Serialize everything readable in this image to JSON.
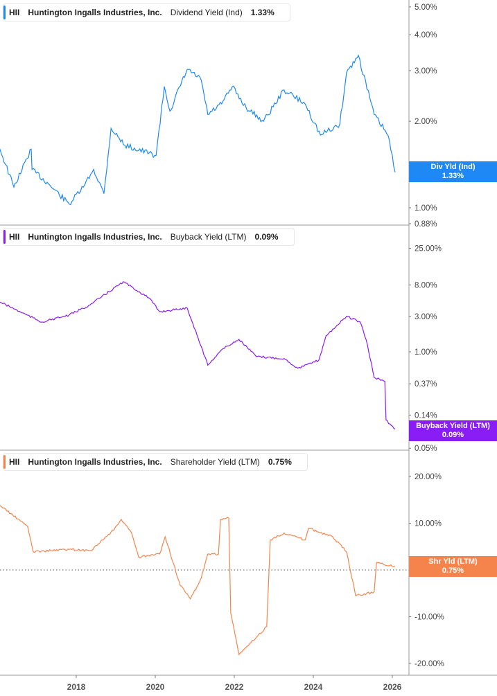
{
  "chart_data": [
    {
      "type": "line",
      "scale": "log",
      "legend": {
        "ticker": "HII",
        "company": "Huntington Ingalls Industries, Inc.",
        "metric": "Dividend Yield (Ind)",
        "value": "1.33%"
      },
      "tag": {
        "label": "Div Yld (Ind)",
        "value": "1.33%"
      },
      "color": "#1e88f5",
      "yticks": [
        "5.00%",
        "4.00%",
        "3.00%",
        "2.00%",
        "1.00%",
        "0.88%"
      ],
      "ytick_values": [
        5,
        4,
        3,
        2,
        1,
        0.88
      ],
      "ylim": [
        0.88,
        5.3
      ],
      "series": {
        "t": [
          2016.07,
          2016.42,
          2016.86,
          2016.88,
          2017.3,
          2017.82,
          2018.18,
          2018.44,
          2018.7,
          2018.88,
          2019.23,
          2020.02,
          2020.23,
          2020.37,
          2020.81,
          2021.16,
          2021.33,
          2021.68,
          2021.95,
          2022.3,
          2022.74,
          2023.26,
          2023.79,
          2024.18,
          2024.67,
          2024.84,
          2025.14,
          2025.54,
          2025.89,
          2026.07
        ],
        "y": [
          1.6,
          1.18,
          1.6,
          1.36,
          1.21,
          1.03,
          1.18,
          1.36,
          1.12,
          1.89,
          1.65,
          1.52,
          2.64,
          2.17,
          3.03,
          2.79,
          2.11,
          2.3,
          2.64,
          2.23,
          2.0,
          2.57,
          2.3,
          1.79,
          1.95,
          2.95,
          3.39,
          2.11,
          1.79,
          1.33
        ]
      }
    },
    {
      "type": "line",
      "scale": "log",
      "legend": {
        "ticker": "HII",
        "company": "Huntington Ingalls Industries, Inc.",
        "metric": "Buyback Yield (LTM)",
        "value": "0.09%"
      },
      "tag": {
        "label": "Buyback Yield (LTM)",
        "value": "0.09%"
      },
      "color": "#8a1cf5",
      "yticks": [
        "25.00%",
        "8.00%",
        "3.00%",
        "1.00%",
        "0.37%",
        "0.14%",
        "0.05%"
      ],
      "ytick_values": [
        25,
        8,
        3,
        1,
        0.37,
        0.14,
        0.05
      ],
      "ylim": [
        0.05,
        30
      ],
      "series": {
        "t": [
          2016.07,
          2017.12,
          2017.82,
          2018.35,
          2019.19,
          2019.84,
          2020.11,
          2020.81,
          2021.16,
          2021.33,
          2021.68,
          2022.12,
          2022.56,
          2023.26,
          2023.61,
          2024.14,
          2024.32,
          2024.84,
          2025.19,
          2025.37,
          2025.54,
          2025.81,
          2025.84,
          2026.07
        ],
        "y": [
          4.7,
          2.52,
          3.13,
          4.3,
          8.8,
          5.35,
          3.48,
          3.88,
          1.19,
          0.66,
          1.07,
          1.47,
          0.86,
          0.81,
          0.6,
          0.77,
          1.64,
          3.0,
          2.52,
          1.24,
          0.45,
          0.4,
          0.12,
          0.09
        ]
      }
    },
    {
      "type": "line",
      "scale": "linear",
      "legend": {
        "ticker": "HII",
        "company": "Huntington Ingalls Industries, Inc.",
        "metric": "Shareholder Yield (LTM)",
        "value": "0.75%"
      },
      "tag": {
        "label": "Shr Yld (LTM)",
        "value": "0.75%"
      },
      "color": "#f5844c",
      "yticks": [
        "20.00%",
        "10.00%",
        "0.00%",
        "-10.00%",
        "-20.00%"
      ],
      "ytick_values": [
        20,
        10,
        0,
        -10,
        -20
      ],
      "ylim": [
        -22,
        24
      ],
      "series": {
        "t": [
          2016.07,
          2016.77,
          2016.91,
          2017.82,
          2018.35,
          2018.96,
          2019.14,
          2019.4,
          2019.58,
          2020.11,
          2020.25,
          2020.63,
          2020.89,
          2021.16,
          2021.33,
          2021.6,
          2021.65,
          2021.86,
          2021.91,
          2022.12,
          2022.56,
          2022.82,
          2022.91,
          2023.26,
          2023.79,
          2023.88,
          2024.49,
          2024.84,
          2025.07,
          2025.54,
          2025.6,
          2026.07
        ],
        "y": [
          13.8,
          9.3,
          3.9,
          4.4,
          4.1,
          8.6,
          10.8,
          7.9,
          2.7,
          3.4,
          7.1,
          -3.3,
          -6.2,
          -1.8,
          3.4,
          3.4,
          10.8,
          11.1,
          -9.2,
          -18.1,
          -14.4,
          -12.1,
          6.4,
          7.9,
          6.4,
          8.9,
          7.1,
          3.9,
          -5.5,
          -4.7,
          1.6,
          0.75
        ]
      }
    }
  ],
  "xaxis": {
    "ticks": [
      "2018",
      "2020",
      "2022",
      "2024",
      "2026"
    ],
    "tick_values": [
      2018,
      2020,
      2022,
      2024,
      2026
    ]
  }
}
